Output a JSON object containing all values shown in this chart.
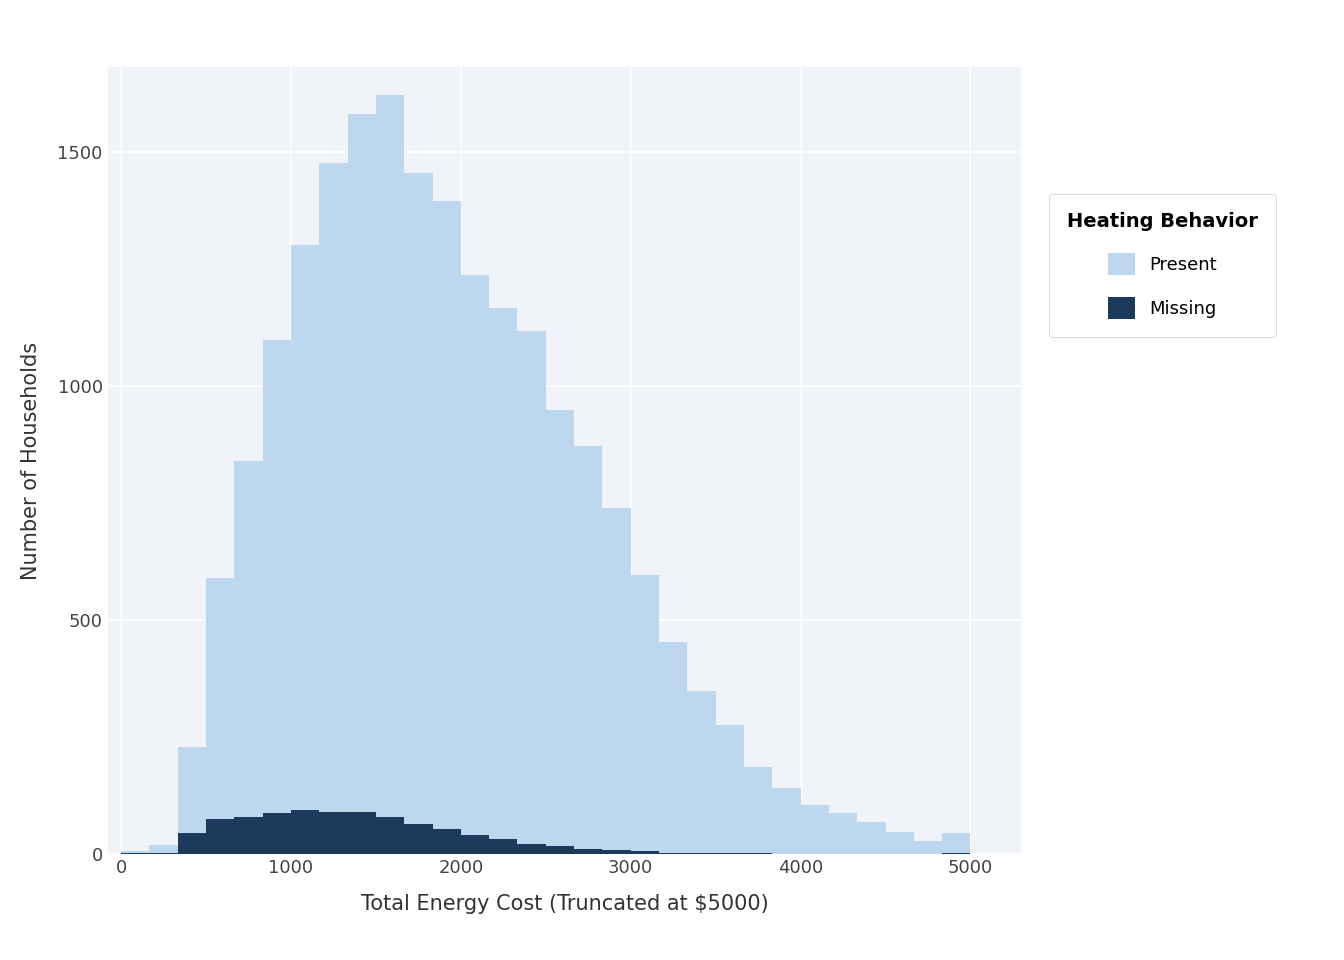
{
  "title": "",
  "xlabel": "Total Energy Cost (Truncated at $5000)",
  "ylabel": "Number of Households",
  "legend_title": "Heating Behavior",
  "legend_labels": [
    "Present",
    "Missing"
  ],
  "color_present": "#BDD7EE",
  "color_missing": "#1B3A5C",
  "background_color": "#FFFFFF",
  "panel_background": "#F0F4F8",
  "grid_color": "#FFFFFF",
  "xlim": [
    -80,
    5300
  ],
  "ylim": [
    0,
    1680
  ],
  "yticks": [
    0,
    500,
    1000,
    1500
  ],
  "xticks": [
    0,
    1000,
    2000,
    3000,
    4000,
    5000
  ],
  "n_bins": 30,
  "present_counts": [
    5,
    15,
    185,
    515,
    760,
    1010,
    1205,
    1385,
    1490,
    1540,
    1390,
    1340,
    1195,
    1135,
    1095,
    930,
    860,
    730,
    590,
    450,
    345,
    275,
    185,
    140,
    105,
    88,
    68,
    48,
    28,
    42
  ],
  "missing_counts": [
    2,
    4,
    45,
    75,
    80,
    88,
    95,
    90,
    90,
    80,
    65,
    55,
    42,
    32,
    22,
    18,
    12,
    9,
    7,
    4,
    3,
    2,
    2,
    1,
    1,
    1,
    1,
    0,
    0,
    4
  ]
}
